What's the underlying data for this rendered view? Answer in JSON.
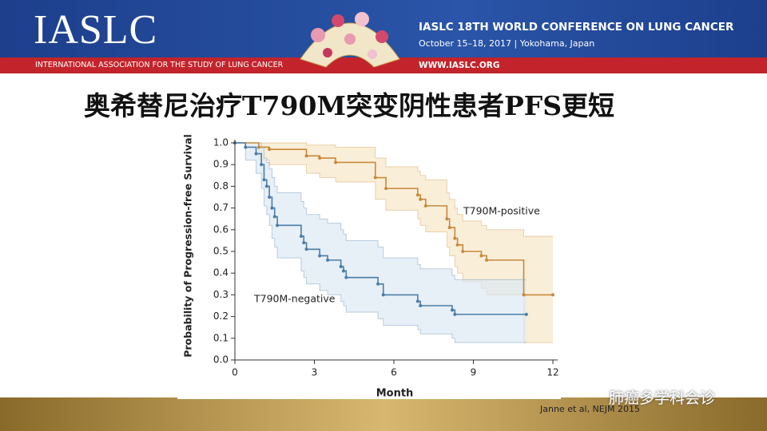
{
  "header": {
    "logo": "IASLC",
    "association": "INTERNATIONAL ASSOCIATION FOR THE STUDY OF LUNG CANCER",
    "conference": "IASLC 18TH WORLD CONFERENCE ON LUNG CANCER",
    "dates": "October 15–18, 2017 | Yokohama, Japan",
    "website": "WWW.IASLC.ORG"
  },
  "slide_title": "奥希替尼治疗T790M突变阴性患者PFS更短",
  "citation": "Janne et al, NEJM 2015",
  "watermark": "肺癌多学科会诊",
  "chart_data": {
    "type": "step",
    "x_label": "Month",
    "y_label": "Probability of Progression-free Survival",
    "xlim": [
      0,
      12
    ],
    "xticks": [
      0,
      3,
      6,
      9,
      12
    ],
    "ylim": [
      0,
      1
    ],
    "yticks": [
      {
        "value": 0,
        "label": "0.0"
      },
      0.1,
      0.2,
      0.3,
      0.4,
      0.5,
      0.6,
      0.7,
      0.8,
      0.9,
      {
        "value": 1,
        "label": "1.0"
      }
    ],
    "series": [
      {
        "name": "T790M-positive",
        "color": "#c8893a",
        "band_color": "#f6e7c8",
        "x": [
          0,
          0.9,
          1.3,
          2.7,
          3.2,
          3.8,
          5.3,
          5.7,
          6.9,
          7.0,
          7.2,
          8.0,
          8.1,
          8.3,
          8.4,
          8.6,
          9.3,
          9.5,
          10.9,
          12
        ],
        "values": [
          1.0,
          0.98,
          0.97,
          0.94,
          0.93,
          0.91,
          0.84,
          0.79,
          0.76,
          0.74,
          0.71,
          0.65,
          0.61,
          0.56,
          0.53,
          0.5,
          0.48,
          0.46,
          0.3,
          0.3
        ],
        "lower": [
          1.0,
          0.92,
          0.9,
          0.86,
          0.84,
          0.82,
          0.74,
          0.69,
          0.65,
          0.62,
          0.59,
          0.52,
          0.48,
          0.43,
          0.4,
          0.36,
          0.33,
          0.3,
          0.08,
          0.08
        ],
        "upper": [
          1.0,
          1.0,
          1.0,
          0.99,
          0.99,
          0.98,
          0.93,
          0.89,
          0.87,
          0.85,
          0.83,
          0.77,
          0.74,
          0.7,
          0.67,
          0.64,
          0.62,
          0.6,
          0.57,
          0.57
        ]
      },
      {
        "name": "T790M-negative",
        "color": "#4a7ea8",
        "band_color": "#dde8f3",
        "x": [
          0,
          0.4,
          0.8,
          1.0,
          1.1,
          1.2,
          1.3,
          1.4,
          1.5,
          1.6,
          2.5,
          2.6,
          2.7,
          3.2,
          3.5,
          4.0,
          4.1,
          4.2,
          5.4,
          5.6,
          6.9,
          7.0,
          8.2,
          8.3,
          11.0
        ],
        "values": [
          1.0,
          0.98,
          0.95,
          0.9,
          0.83,
          0.8,
          0.75,
          0.7,
          0.66,
          0.62,
          0.57,
          0.54,
          0.51,
          0.48,
          0.46,
          0.43,
          0.41,
          0.38,
          0.35,
          0.3,
          0.27,
          0.25,
          0.23,
          0.21,
          0.21
        ],
        "lower": [
          1.0,
          0.92,
          0.86,
          0.79,
          0.71,
          0.67,
          0.62,
          0.56,
          0.52,
          0.47,
          0.41,
          0.38,
          0.35,
          0.32,
          0.3,
          0.27,
          0.25,
          0.22,
          0.19,
          0.16,
          0.14,
          0.12,
          0.1,
          0.08,
          0.08
        ],
        "upper": [
          1.0,
          1.0,
          1.0,
          0.98,
          0.93,
          0.91,
          0.88,
          0.84,
          0.8,
          0.77,
          0.73,
          0.7,
          0.67,
          0.65,
          0.63,
          0.6,
          0.58,
          0.55,
          0.52,
          0.47,
          0.44,
          0.42,
          0.39,
          0.37,
          0.37
        ]
      }
    ]
  }
}
